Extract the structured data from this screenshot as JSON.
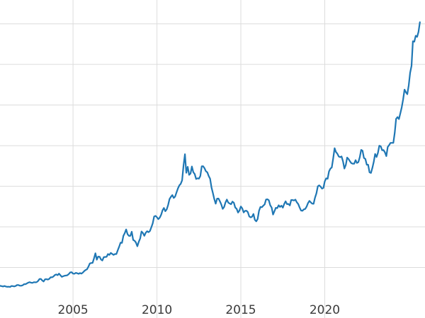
{
  "chart_data": {
    "type": "line",
    "title": "",
    "xlabel": "",
    "ylabel": "",
    "grid": true,
    "grid_color": "#dcdcdc",
    "tick_label_color": "#3a3a3a",
    "background_color": "#ffffff",
    "line_width": 2.2,
    "xlim": [
      2000.65,
      2025.97
    ],
    "ylim": [
      -122,
      3793
    ],
    "x_ticks": [
      {
        "value": 2005,
        "label": "2005"
      },
      {
        "value": 2010,
        "label": "2010"
      },
      {
        "value": 2015,
        "label": "2015"
      },
      {
        "value": 2020,
        "label": "2020"
      }
    ],
    "y_gridlines": [
      500,
      1000,
      1500,
      2000,
      2500,
      3000,
      3500
    ],
    "series": [
      {
        "name": "series-1",
        "color": "#1f77b4",
        "x_start_year": 2000.6667,
        "x_interval_years": 0.083333,
        "values": [
          274,
          270,
          266,
          272,
          266,
          262,
          263,
          260,
          272,
          270,
          267,
          272,
          284,
          283,
          276,
          276,
          281,
          295,
          294,
          303,
          314,
          319,
          313,
          310,
          319,
          317,
          319,
          333,
          357,
          359,
          340,
          328,
          355,
          356,
          351,
          360,
          379,
          379,
          389,
          407,
          414,
          405,
          424,
          404,
          384,
          392,
          398,
          401,
          405,
          420,
          439,
          442,
          424,
          423,
          434,
          429,
          422,
          431,
          424,
          437,
          456,
          470,
          477,
          510,
          550,
          555,
          557,
          611,
          675,
          596,
          634,
          632,
          598,
          586,
          627,
          630,
          631,
          665,
          655,
          679,
          667,
          655,
          665,
          665,
          713,
          755,
          806,
          803,
          890,
          922,
          968,
          910,
          889,
          889,
          940,
          839,
          829,
          807,
          761,
          816,
          858,
          943,
          924,
          890,
          929,
          946,
          934,
          950,
          996,
          1043,
          1127,
          1135,
          1118,
          1095,
          1113,
          1149,
          1205,
          1233,
          1193,
          1216,
          1271,
          1342,
          1370,
          1391,
          1356,
          1373,
          1424,
          1474,
          1511,
          1529,
          1573,
          1756,
          1895,
          1666,
          1739,
          1641,
          1656,
          1743,
          1674,
          1650,
          1589,
          1598,
          1594,
          1626,
          1745,
          1747,
          1722,
          1685,
          1671,
          1627,
          1593,
          1485,
          1414,
          1343,
          1286,
          1347,
          1348,
          1316,
          1276,
          1221,
          1244,
          1300,
          1336,
          1298,
          1288,
          1279,
          1311,
          1296,
          1238,
          1222,
          1176,
          1201,
          1251,
          1227,
          1178,
          1197,
          1199,
          1181,
          1128,
          1117,
          1125,
          1159,
          1086,
          1068,
          1097,
          1199,
          1246,
          1242,
          1260,
          1276,
          1337,
          1340,
          1327,
          1266,
          1238,
          1152,
          1192,
          1234,
          1231,
          1266,
          1246,
          1260,
          1236,
          1283,
          1314,
          1280,
          1282,
          1264,
          1331,
          1330,
          1325,
          1335,
          1303,
          1281,
          1238,
          1201,
          1198,
          1215,
          1220,
          1250,
          1292,
          1320,
          1301,
          1286,
          1284,
          1359,
          1413,
          1500,
          1511,
          1495,
          1471,
          1480,
          1561,
          1597,
          1592,
          1683,
          1716,
          1732,
          1843,
          1969,
          1922,
          1900,
          1866,
          1858,
          1867,
          1808,
          1718,
          1762,
          1853,
          1835,
          1807,
          1784,
          1777,
          1777,
          1822,
          1787,
          1797,
          1856,
          1948,
          1937,
          1848,
          1836,
          1765,
          1765,
          1671,
          1664,
          1726,
          1798,
          1898,
          1860,
          1913,
          1999,
          1992,
          1943,
          1945,
          1918,
          1871,
          1984,
          2007,
          2034,
          2034,
          2035,
          2160,
          2330,
          2351,
          2327,
          2398,
          2470,
          2568,
          2690,
          2657,
          2633,
          2740,
          2897,
          2983,
          3285,
          3280,
          3353,
          3340,
          3400,
          3520
        ]
      }
    ]
  }
}
